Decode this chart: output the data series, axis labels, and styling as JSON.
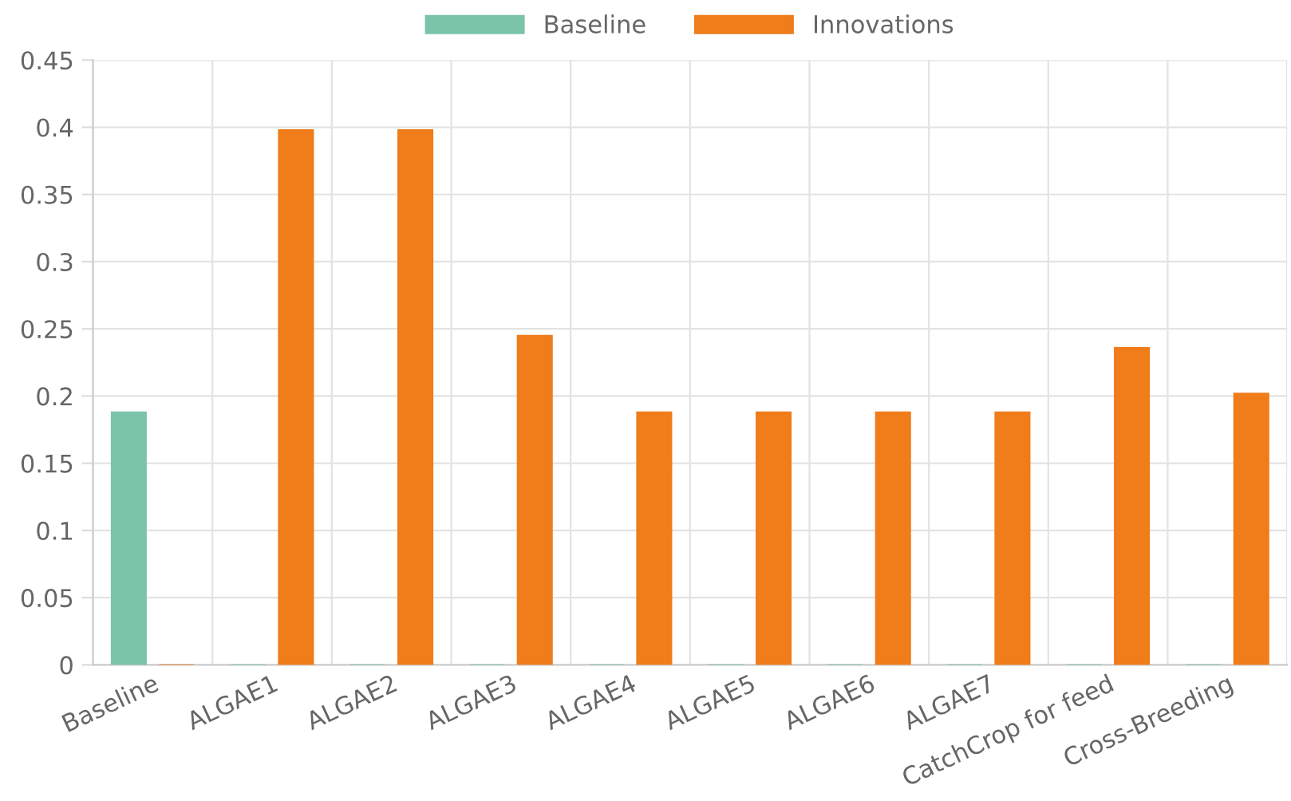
{
  "chart_data": {
    "type": "bar",
    "categories": [
      "Baseline",
      "ALGAE1",
      "ALGAE2",
      "ALGAE3",
      "ALGAE4",
      "ALGAE5",
      "ALGAE6",
      "ALGAE7",
      "CatchCrop for feed",
      "Cross-Breeding"
    ],
    "series": [
      {
        "name": "Baseline",
        "color": "#7bc4a9",
        "values": [
          0.188,
          0,
          0,
          0,
          0,
          0,
          0,
          0,
          0,
          0
        ]
      },
      {
        "name": "Innovations",
        "color": "#f07c1a",
        "values": [
          0,
          0.398,
          0.398,
          0.245,
          0.188,
          0.188,
          0.188,
          0.188,
          0.236,
          0.202
        ]
      }
    ],
    "ylim": [
      0,
      0.45
    ],
    "yticks": [
      0,
      0.05,
      0.1,
      0.15,
      0.2,
      0.25,
      0.3,
      0.35,
      0.4,
      0.45
    ],
    "grid": true,
    "legend": "top"
  }
}
